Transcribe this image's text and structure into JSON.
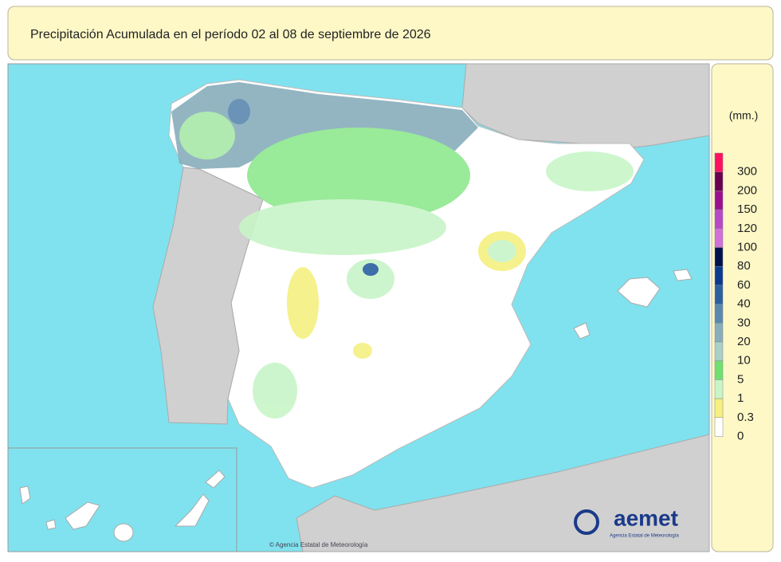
{
  "header": {
    "title": "Precipitación Acumulada en el período 02 al 08 de septiembre de 2026"
  },
  "legend": {
    "unit": "(mm.)",
    "items": [
      {
        "label": "300",
        "color": "#ff1060"
      },
      {
        "label": "200",
        "color": "#6a0050"
      },
      {
        "label": "150",
        "color": "#9a1090"
      },
      {
        "label": "120",
        "color": "#b848c8"
      },
      {
        "label": "100",
        "color": "#d070d8"
      },
      {
        "label": "80",
        "color": "#00104a"
      },
      {
        "label": "60",
        "color": "#0a3a90"
      },
      {
        "label": "40",
        "color": "#2a60a0"
      },
      {
        "label": "30",
        "color": "#5a88b0"
      },
      {
        "label": "20",
        "color": "#88aebc"
      },
      {
        "label": "10",
        "color": "#a8d0c8"
      },
      {
        "label": "5",
        "color": "#70e070"
      },
      {
        "label": "1",
        "color": "#c8f5c8"
      },
      {
        "label": "0.3",
        "color": "#f5f080"
      },
      {
        "label": "0",
        "color": "#ffffff"
      }
    ]
  },
  "logo": {
    "name": "aemet",
    "subtitle": "Agencia Estatal de Meteorología"
  },
  "credit": "© Agencia Estatal de Meteorología"
}
